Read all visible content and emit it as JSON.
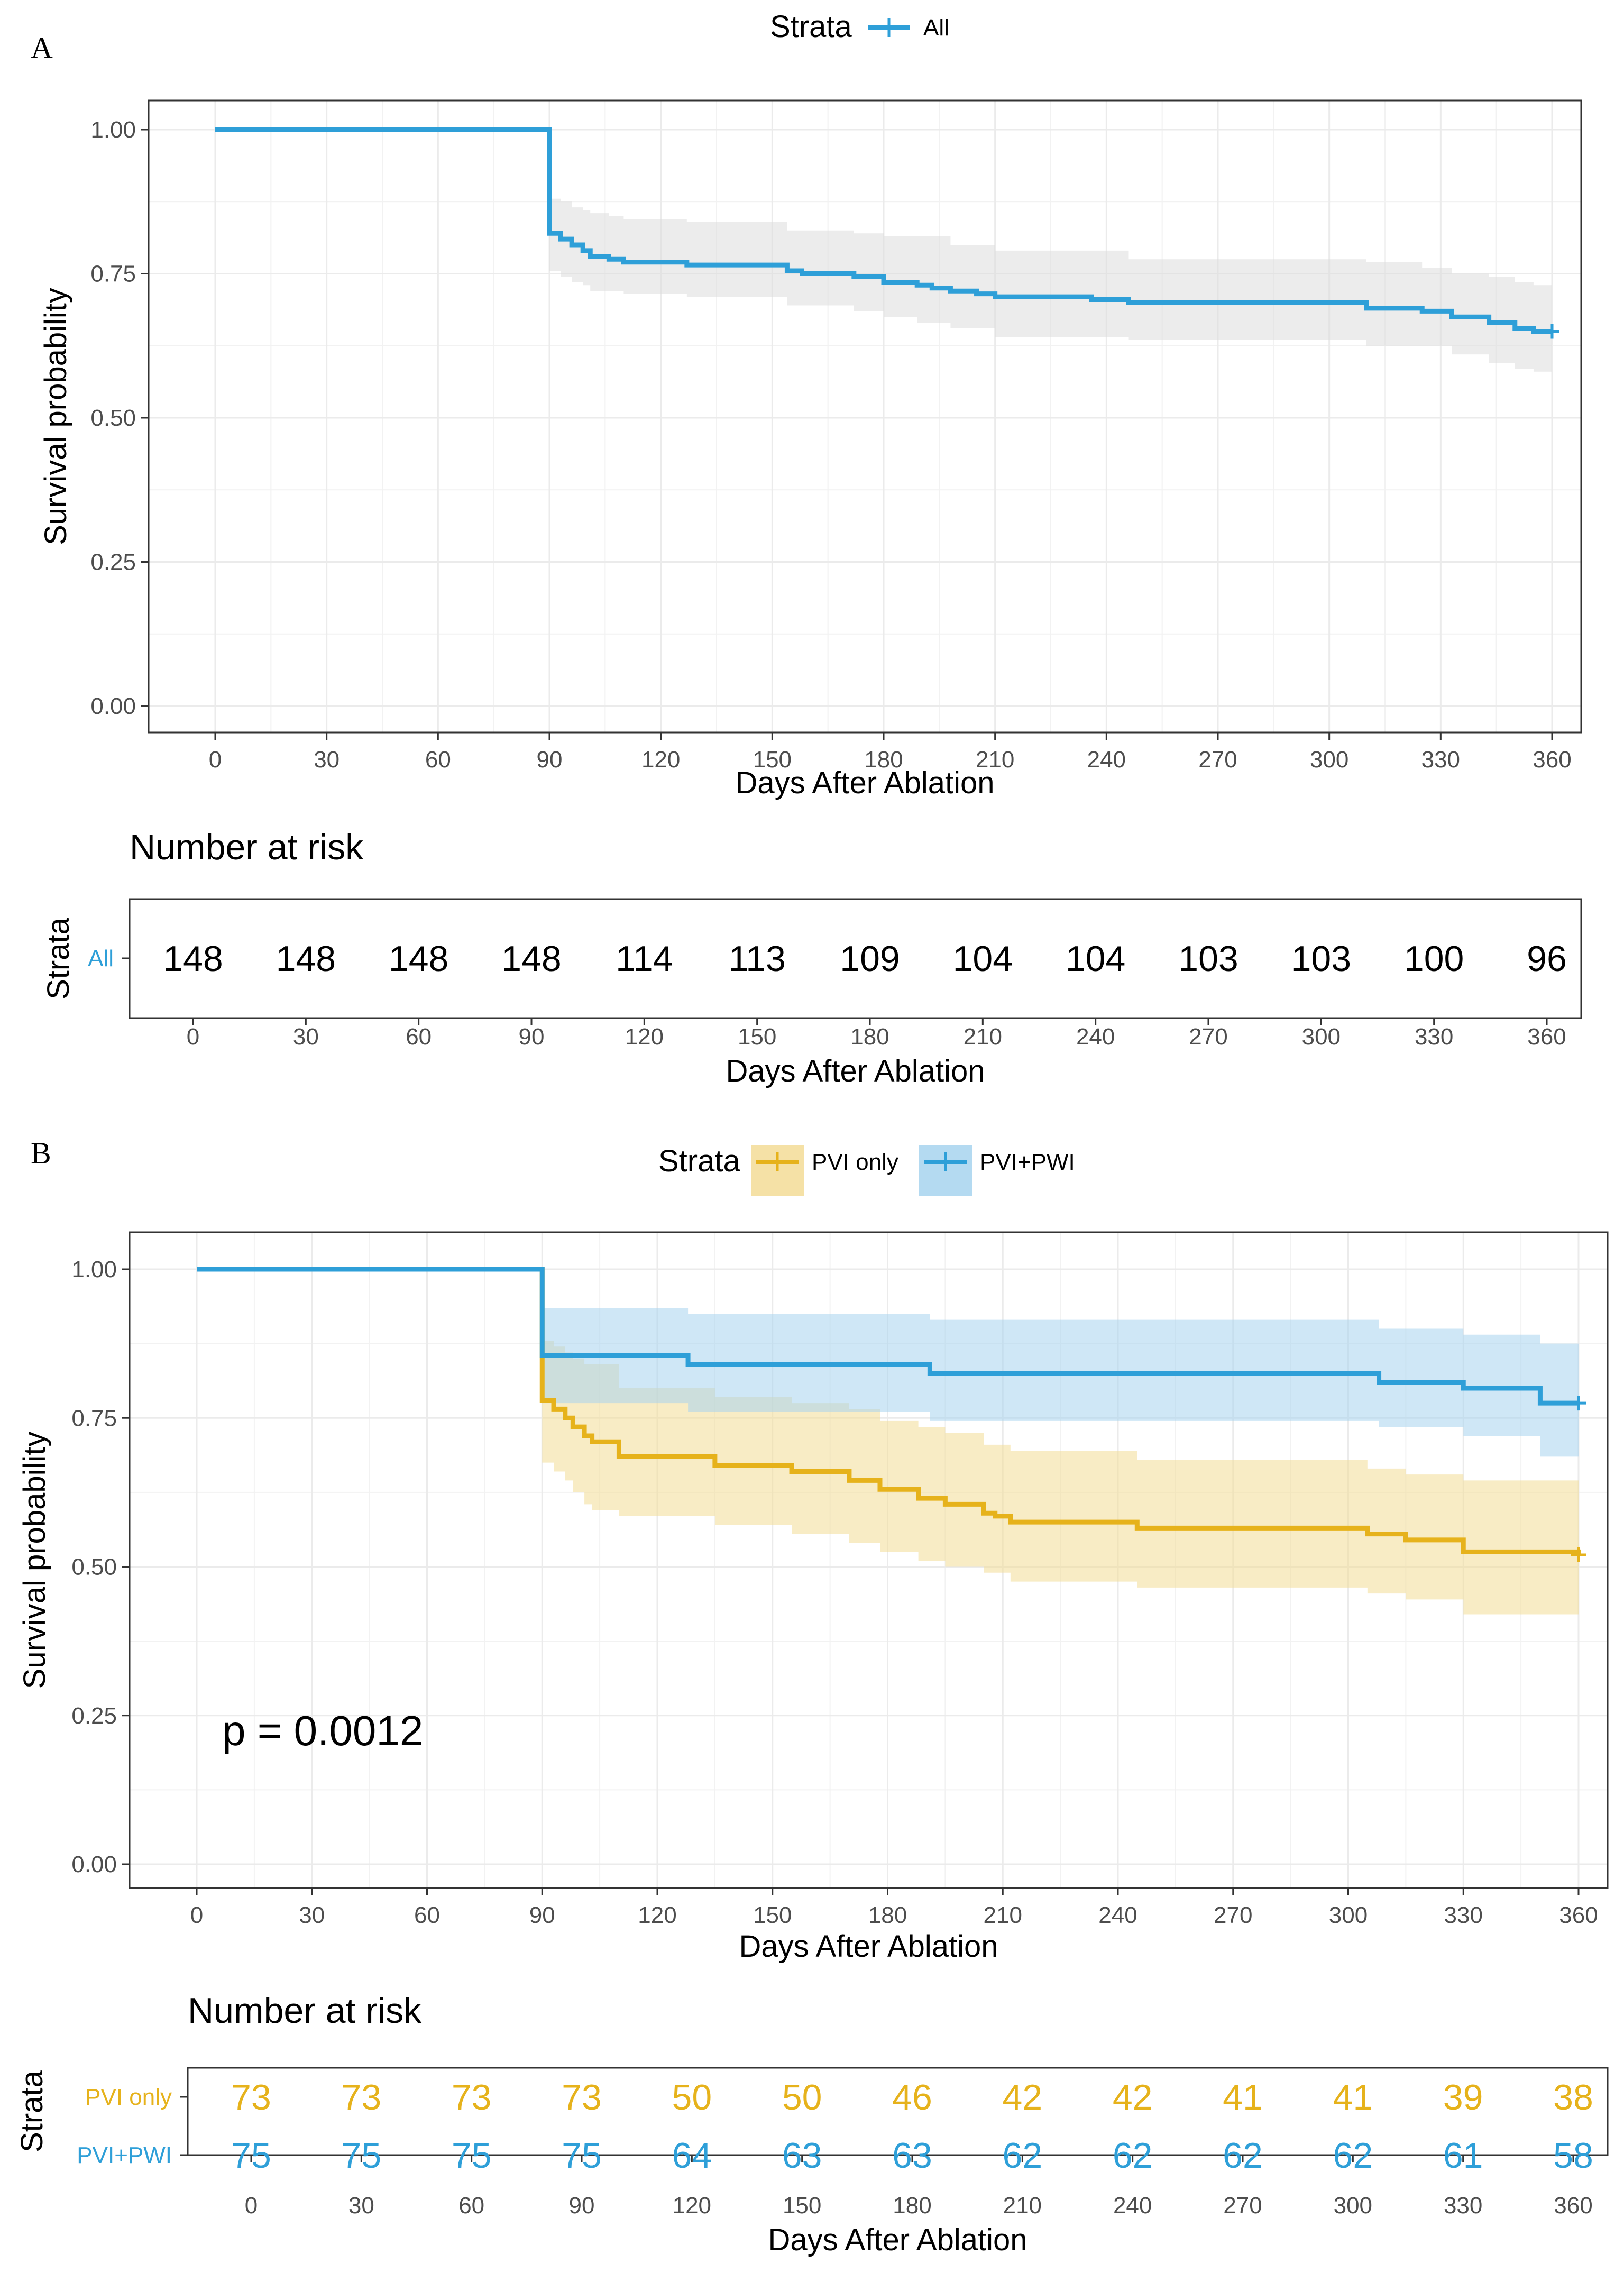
{
  "chart_data": [
    {
      "type": "line",
      "panel": "A",
      "xlabel": "Days After Ablation",
      "ylabel": "Survival probability",
      "xlim": [
        0,
        360
      ],
      "ylim": [
        0,
        1
      ],
      "x_ticks": [
        0,
        30,
        60,
        90,
        120,
        150,
        180,
        210,
        240,
        270,
        300,
        330,
        360
      ],
      "y_ticks": [
        "0.00",
        "0.25",
        "0.50",
        "0.75",
        "1.00"
      ],
      "grid": true,
      "legend": {
        "title": "Strata",
        "position": "top",
        "entries": [
          "All"
        ]
      },
      "series": [
        {
          "name": "All",
          "color": "#2e9fd8",
          "steps": [
            [
              0,
              1.0
            ],
            [
              90,
              0.82
            ],
            [
              93,
              0.81
            ],
            [
              96,
              0.8
            ],
            [
              99,
              0.79
            ],
            [
              101,
              0.78
            ],
            [
              106,
              0.775
            ],
            [
              110,
              0.77
            ],
            [
              127,
              0.765
            ],
            [
              154,
              0.755
            ],
            [
              158,
              0.75
            ],
            [
              172,
              0.745
            ],
            [
              180,
              0.735
            ],
            [
              189,
              0.73
            ],
            [
              193,
              0.725
            ],
            [
              198,
              0.72
            ],
            [
              205,
              0.715
            ],
            [
              210,
              0.71
            ],
            [
              236,
              0.705
            ],
            [
              246,
              0.7
            ],
            [
              310,
              0.69
            ],
            [
              325,
              0.685
            ],
            [
              333,
              0.675
            ],
            [
              343,
              0.665
            ],
            [
              350,
              0.655
            ],
            [
              355,
              0.65
            ]
          ],
          "ci_lower": [
            [
              0,
              1.0
            ],
            [
              90,
              0.755
            ],
            [
              93,
              0.745
            ],
            [
              96,
              0.735
            ],
            [
              99,
              0.73
            ],
            [
              101,
              0.72
            ],
            [
              110,
              0.715
            ],
            [
              127,
              0.71
            ],
            [
              154,
              0.695
            ],
            [
              172,
              0.685
            ],
            [
              180,
              0.675
            ],
            [
              189,
              0.665
            ],
            [
              198,
              0.655
            ],
            [
              210,
              0.64
            ],
            [
              246,
              0.635
            ],
            [
              310,
              0.625
            ],
            [
              333,
              0.61
            ],
            [
              343,
              0.595
            ],
            [
              350,
              0.585
            ],
            [
              355,
              0.58
            ]
          ],
          "ci_upper": [
            [
              0,
              1.0
            ],
            [
              90,
              0.88
            ],
            [
              93,
              0.875
            ],
            [
              96,
              0.865
            ],
            [
              99,
              0.86
            ],
            [
              101,
              0.855
            ],
            [
              106,
              0.85
            ],
            [
              110,
              0.845
            ],
            [
              127,
              0.84
            ],
            [
              154,
              0.825
            ],
            [
              172,
              0.82
            ],
            [
              180,
              0.815
            ],
            [
              198,
              0.8
            ],
            [
              210,
              0.79
            ],
            [
              246,
              0.775
            ],
            [
              310,
              0.77
            ],
            [
              325,
              0.76
            ],
            [
              333,
              0.75
            ],
            [
              343,
              0.745
            ],
            [
              350,
              0.735
            ],
            [
              355,
              0.73
            ]
          ],
          "censor_x": [
            360
          ]
        }
      ]
    },
    {
      "type": "line",
      "panel": "B",
      "xlabel": "Days After Ablation",
      "ylabel": "Survival probability",
      "xlim": [
        0,
        360
      ],
      "ylim": [
        0,
        1
      ],
      "x_ticks": [
        0,
        30,
        60,
        90,
        120,
        150,
        180,
        210,
        240,
        270,
        300,
        330,
        360
      ],
      "y_ticks": [
        "0.00",
        "0.25",
        "0.50",
        "0.75",
        "1.00"
      ],
      "grid": true,
      "annotation": "p = 0.0012",
      "legend": {
        "title": "Strata",
        "position": "top",
        "entries": [
          "PVI only",
          "PVI+PWI"
        ]
      },
      "series": [
        {
          "name": "PVI only",
          "color": "#e6b21b",
          "steps": [
            [
              0,
              1.0
            ],
            [
              90,
              0.78
            ],
            [
              93,
              0.765
            ],
            [
              96,
              0.75
            ],
            [
              98,
              0.735
            ],
            [
              101,
              0.72
            ],
            [
              103,
              0.71
            ],
            [
              110,
              0.685
            ],
            [
              135,
              0.67
            ],
            [
              155,
              0.66
            ],
            [
              170,
              0.645
            ],
            [
              178,
              0.63
            ],
            [
              188,
              0.615
            ],
            [
              195,
              0.605
            ],
            [
              205,
              0.59
            ],
            [
              208,
              0.585
            ],
            [
              212,
              0.575
            ],
            [
              245,
              0.565
            ],
            [
              305,
              0.555
            ],
            [
              315,
              0.545
            ],
            [
              330,
              0.525
            ],
            [
              360,
              0.52
            ]
          ],
          "ci_lower": [
            [
              0,
              1.0
            ],
            [
              90,
              0.675
            ],
            [
              93,
              0.66
            ],
            [
              96,
              0.645
            ],
            [
              98,
              0.625
            ],
            [
              101,
              0.605
            ],
            [
              103,
              0.595
            ],
            [
              110,
              0.585
            ],
            [
              135,
              0.57
            ],
            [
              155,
              0.555
            ],
            [
              170,
              0.54
            ],
            [
              178,
              0.525
            ],
            [
              188,
              0.51
            ],
            [
              195,
              0.5
            ],
            [
              205,
              0.49
            ],
            [
              212,
              0.475
            ],
            [
              245,
              0.465
            ],
            [
              305,
              0.455
            ],
            [
              315,
              0.445
            ],
            [
              330,
              0.42
            ]
          ],
          "ci_upper": [
            [
              0,
              1.0
            ],
            [
              90,
              0.88
            ],
            [
              93,
              0.87
            ],
            [
              96,
              0.86
            ],
            [
              98,
              0.85
            ],
            [
              101,
              0.84
            ],
            [
              110,
              0.8
            ],
            [
              135,
              0.785
            ],
            [
              155,
              0.775
            ],
            [
              170,
              0.765
            ],
            [
              178,
              0.745
            ],
            [
              188,
              0.735
            ],
            [
              195,
              0.725
            ],
            [
              205,
              0.705
            ],
            [
              212,
              0.695
            ],
            [
              245,
              0.68
            ],
            [
              305,
              0.665
            ],
            [
              315,
              0.655
            ],
            [
              330,
              0.645
            ]
          ],
          "censor_x": [
            360
          ]
        },
        {
          "name": "PVI+PWI",
          "color": "#2e9fd8",
          "steps": [
            [
              0,
              1.0
            ],
            [
              90,
              0.855
            ],
            [
              128,
              0.84
            ],
            [
              191,
              0.825
            ],
            [
              308,
              0.81
            ],
            [
              330,
              0.8
            ],
            [
              350,
              0.775
            ]
          ],
          "ci_lower": [
            [
              0,
              1.0
            ],
            [
              90,
              0.775
            ],
            [
              128,
              0.76
            ],
            [
              191,
              0.745
            ],
            [
              308,
              0.735
            ],
            [
              330,
              0.72
            ],
            [
              350,
              0.685
            ]
          ],
          "ci_upper": [
            [
              0,
              1.0
            ],
            [
              90,
              0.935
            ],
            [
              128,
              0.925
            ],
            [
              191,
              0.915
            ],
            [
              308,
              0.9
            ],
            [
              330,
              0.89
            ],
            [
              350,
              0.875
            ]
          ],
          "censor_x": [
            360
          ]
        }
      ]
    }
  ],
  "risk_tables": [
    {
      "panel": "A",
      "title": "Number at risk",
      "ylabel": "Strata",
      "xlabel": "Days After Ablation",
      "times": [
        0,
        30,
        60,
        90,
        120,
        150,
        180,
        210,
        240,
        270,
        300,
        330,
        360
      ],
      "rows": [
        {
          "label": "All",
          "label_color": "#2e9fd8",
          "value_color": "#000000",
          "values": [
            148,
            148,
            148,
            148,
            114,
            113,
            109,
            104,
            104,
            103,
            103,
            100,
            96
          ]
        }
      ]
    },
    {
      "panel": "B",
      "title": "Number at risk",
      "ylabel": "Strata",
      "xlabel": "Days After Ablation",
      "times": [
        0,
        30,
        60,
        90,
        120,
        150,
        180,
        210,
        240,
        270,
        300,
        330,
        360
      ],
      "rows": [
        {
          "label": "PVI only",
          "label_color": "#e6b21b",
          "value_color": "#e6b21b",
          "values": [
            73,
            73,
            73,
            73,
            50,
            50,
            46,
            42,
            42,
            41,
            41,
            39,
            38
          ]
        },
        {
          "label": "PVI+PWI",
          "label_color": "#2e9fd8",
          "value_color": "#2e9fd8",
          "values": [
            75,
            75,
            75,
            75,
            64,
            63,
            63,
            62,
            62,
            62,
            62,
            61,
            58
          ]
        }
      ]
    }
  ],
  "panel_labels": [
    "A",
    "B"
  ],
  "colors": {
    "band_grey": "#dcdcdc",
    "band_blue": "#a7d3ee",
    "band_yellow": "#f3dc96"
  }
}
